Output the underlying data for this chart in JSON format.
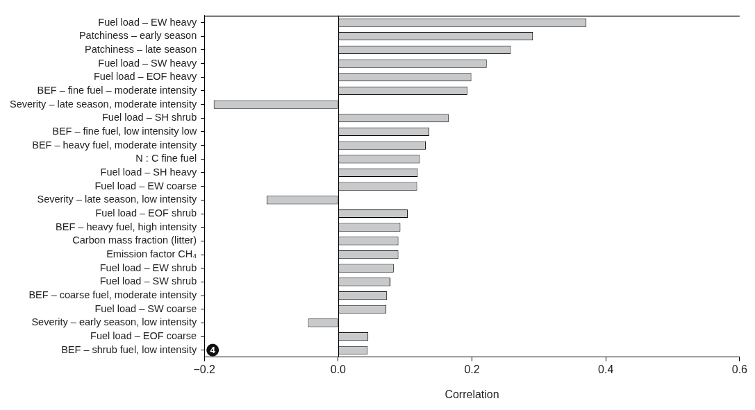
{
  "chart_data": {
    "type": "bar",
    "orientation": "horizontal",
    "xlabel": "Correlation",
    "categories": [
      "Fuel load – EW heavy",
      "Patchiness – early season",
      "Patchiness – late season",
      "Fuel load – SW heavy",
      "Fuel load – EOF heavy",
      "BEF – fine fuel – moderate intensity",
      "Severity – late season, moderate intensity",
      "Fuel load – SH shrub",
      "BEF – fine fuel, low intensity low",
      "BEF – heavy fuel, moderate intensity",
      "N : C fine fuel",
      "Fuel load – SH heavy",
      "Fuel load – EW coarse",
      "Severity – late season, low intensity",
      "Fuel load – EOF shrub",
      "BEF – heavy fuel, high intensity",
      "Carbon mass fraction (litter)",
      "Emission factor CH₄",
      "Fuel load – EW shrub",
      "Fuel load – SW shrub",
      "BEF – coarse fuel, moderate intensity",
      "Fuel load – SW coarse",
      "Severity – early season, low intensity",
      "Fuel load – EOF coarse",
      "BEF – shrub fuel, low intensity"
    ],
    "values": [
      0.371,
      0.291,
      0.258,
      0.222,
      0.199,
      0.193,
      -0.186,
      0.165,
      0.136,
      0.131,
      0.122,
      0.119,
      0.118,
      -0.107,
      0.104,
      0.093,
      0.09,
      0.09,
      0.083,
      0.078,
      0.073,
      0.072,
      -0.045,
      0.045,
      0.044
    ],
    "color": "#c8c9cb",
    "xlim": [
      -0.2,
      0.6
    ],
    "xticks": [
      {
        "value": -0.2,
        "label": "−0.2"
      },
      {
        "value": 0,
        "label": "0.0"
      },
      {
        "value": 0.2,
        "label": "0.2"
      },
      {
        "value": 0.4,
        "label": "0.4"
      },
      {
        "value": 0.6,
        "label": "0.6"
      }
    ],
    "ref_lines": [
      {
        "axis": "x",
        "value": 0
      }
    ],
    "annotations": [
      "4"
    ],
    "grid": false,
    "legend": false
  }
}
